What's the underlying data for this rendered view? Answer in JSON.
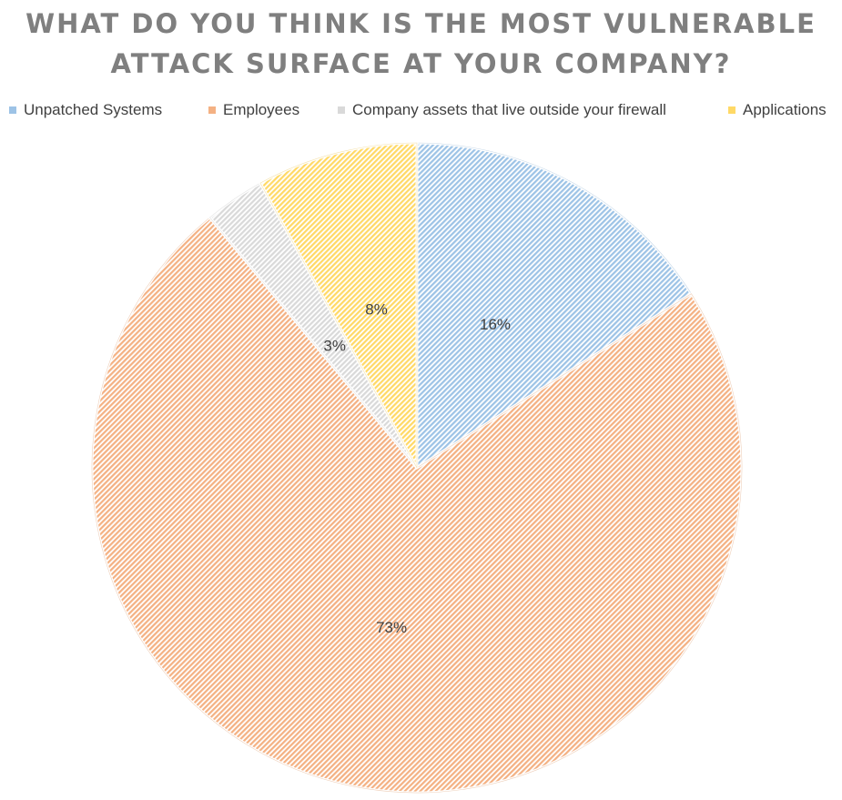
{
  "chart_data": {
    "type": "pie",
    "title_lines": [
      "WHAT DO YOU THINK IS THE MOST VULNERABLE",
      "ATTACK SURFACE AT YOUR COMPANY?"
    ],
    "categories": [
      "Unpatched Systems",
      "Employees",
      "Company assets that live outside your firewall",
      "Applications"
    ],
    "values": [
      16,
      73,
      3,
      8
    ],
    "data_labels": [
      "16%",
      "73%",
      "3%",
      "8%"
    ],
    "colors": [
      "#9dc3e6",
      "#f4b183",
      "#d9d9d9",
      "#ffd966"
    ],
    "legend_position": "top",
    "start_angle": "12 o'clock",
    "direction": "clockwise",
    "fill_pattern": "diagonal hatching"
  }
}
